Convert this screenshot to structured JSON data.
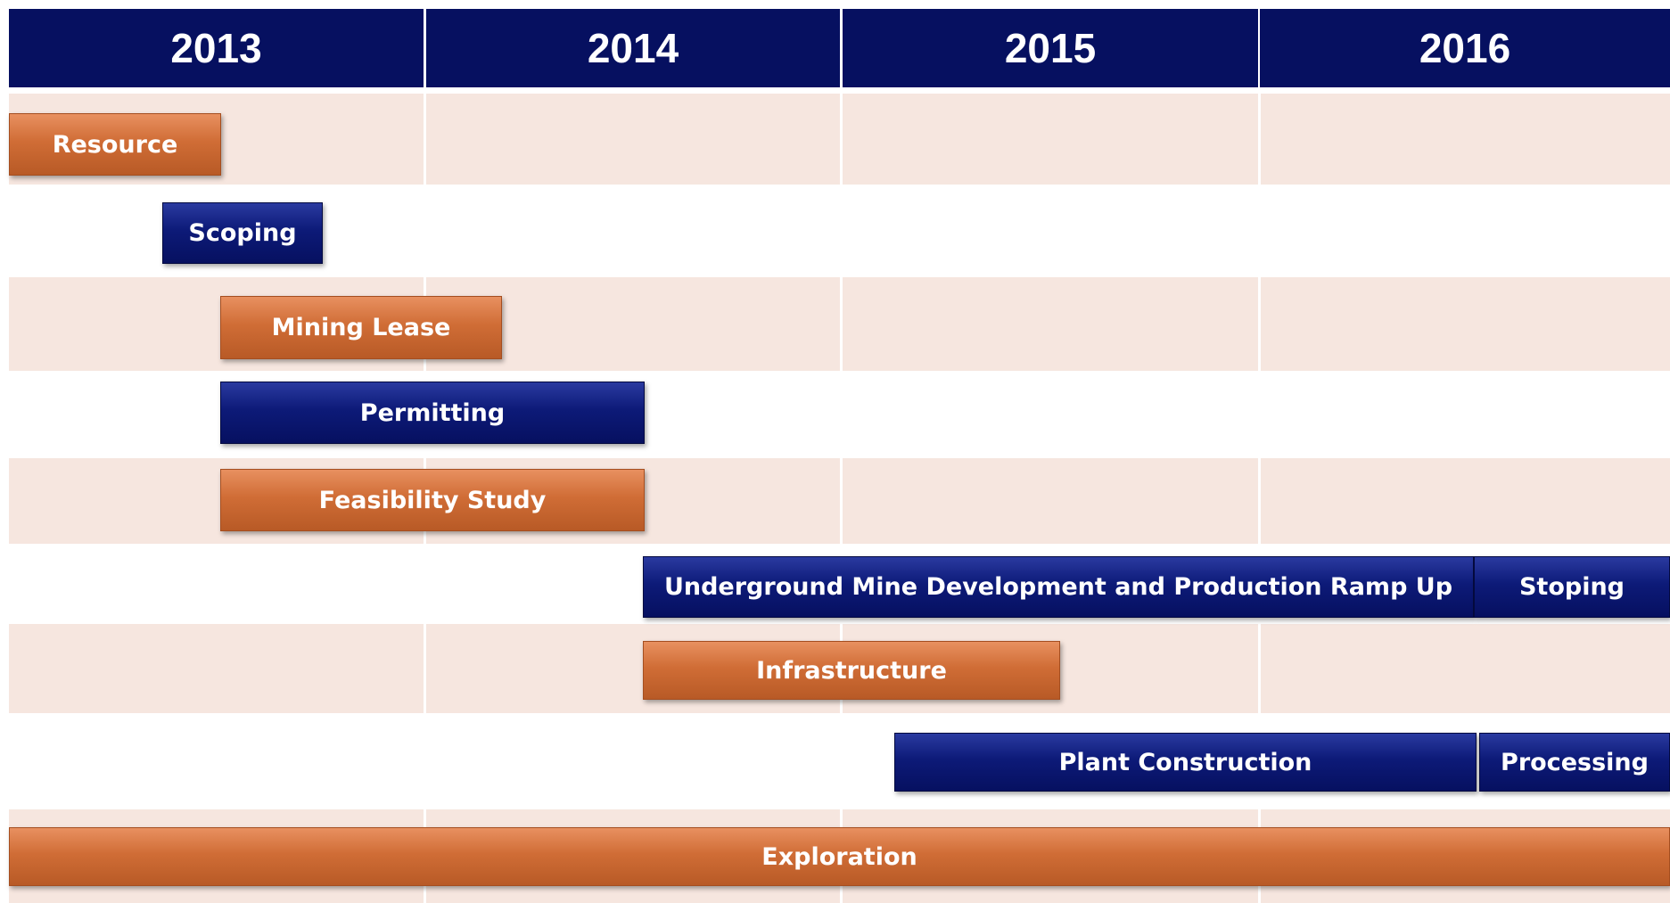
{
  "header": {
    "years": [
      "2013",
      "2014",
      "2015",
      "2016"
    ]
  },
  "tasks": [
    {
      "label": "Resource"
    },
    {
      "label": "Scoping"
    },
    {
      "label": "Mining Lease"
    },
    {
      "label": "Permitting"
    },
    {
      "label": "Feasibility Study"
    },
    {
      "label": "Underground Mine Development and Production Ramp Up"
    },
    {
      "label": "Stoping"
    },
    {
      "label": "Infrastructure"
    },
    {
      "label": "Plant Construction"
    },
    {
      "label": "Processing"
    },
    {
      "label": "Exploration"
    }
  ]
}
